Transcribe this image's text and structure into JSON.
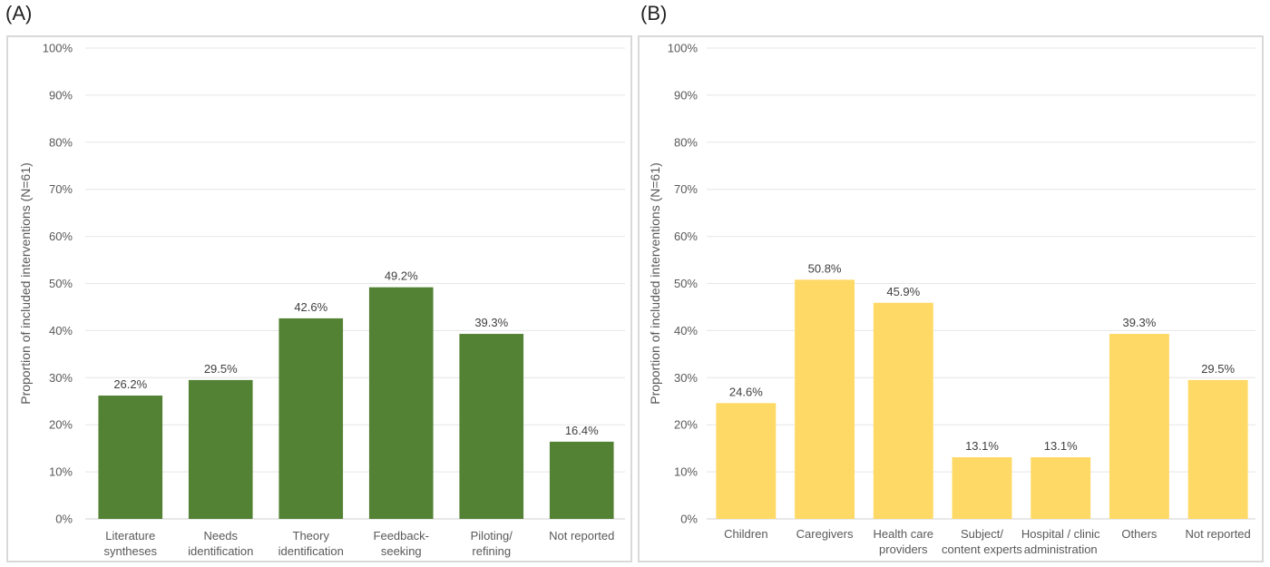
{
  "panel_labels": [
    "(A)",
    "(B)"
  ],
  "chart_data": [
    {
      "type": "bar",
      "panel": "(A)",
      "ylabel": "Proportion of included interventions (N=61)",
      "ylim": [
        0,
        100
      ],
      "y_ticks": [
        "0%",
        "10%",
        "20%",
        "30%",
        "40%",
        "50%",
        "60%",
        "70%",
        "80%",
        "90%",
        "100%"
      ],
      "grid": true,
      "bar_color": "#548235",
      "categories": [
        [
          "Literature",
          "syntheses"
        ],
        [
          "Needs",
          "identification"
        ],
        [
          "Theory",
          "identification"
        ],
        [
          "Feedback-",
          "seeking"
        ],
        [
          "Piloting/",
          "refining"
        ],
        [
          "Not reported"
        ]
      ],
      "values": [
        26.2,
        29.5,
        42.6,
        49.2,
        39.3,
        16.4
      ],
      "data_labels": [
        "26.2%",
        "29.5%",
        "42.6%",
        "49.2%",
        "39.3%",
        "16.4%"
      ]
    },
    {
      "type": "bar",
      "panel": "(B)",
      "ylabel": "Proportion of included interventions (N=61)",
      "ylim": [
        0,
        100
      ],
      "y_ticks": [
        "0%",
        "10%",
        "20%",
        "30%",
        "40%",
        "50%",
        "60%",
        "70%",
        "80%",
        "90%",
        "100%"
      ],
      "grid": true,
      "bar_color": "#FFD966",
      "categories": [
        [
          "Children"
        ],
        [
          "Caregivers"
        ],
        [
          "Health care",
          "providers"
        ],
        [
          "Subject/",
          "content experts"
        ],
        [
          "Hospital / clinic",
          "administration"
        ],
        [
          "Others"
        ],
        [
          "Not reported"
        ]
      ],
      "values": [
        24.6,
        50.8,
        45.9,
        13.1,
        13.1,
        39.3,
        29.5
      ],
      "data_labels": [
        "24.6%",
        "50.8%",
        "45.9%",
        "13.1%",
        "13.1%",
        "39.3%",
        "29.5%"
      ]
    }
  ]
}
